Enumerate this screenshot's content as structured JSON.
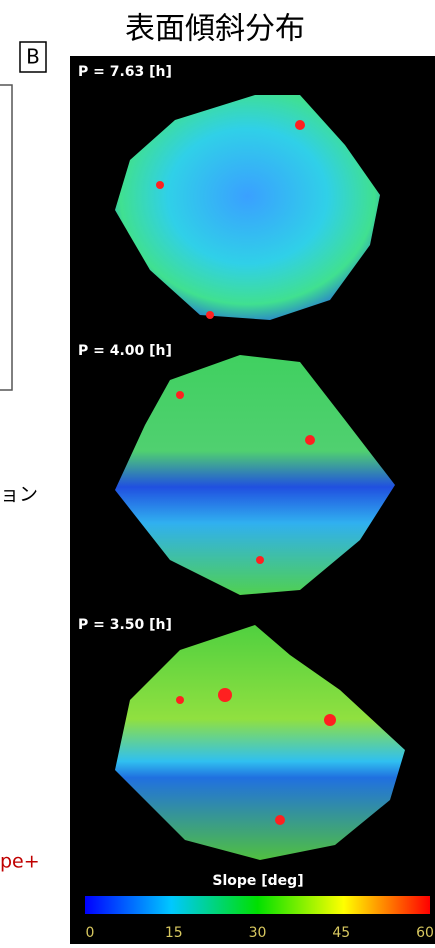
{
  "title": "表面傾斜分布",
  "panel_label": "B",
  "panels": [
    {
      "label": "P = 7.63 [h]"
    },
    {
      "label": "P = 4.00 [h]"
    },
    {
      "label": "P = 3.50 [h]"
    }
  ],
  "colorbar": {
    "title": "Slope [deg]",
    "ticks": [
      0,
      15,
      30,
      45,
      60
    ]
  },
  "side_text": [
    "ョン",
    "pe+"
  ]
}
